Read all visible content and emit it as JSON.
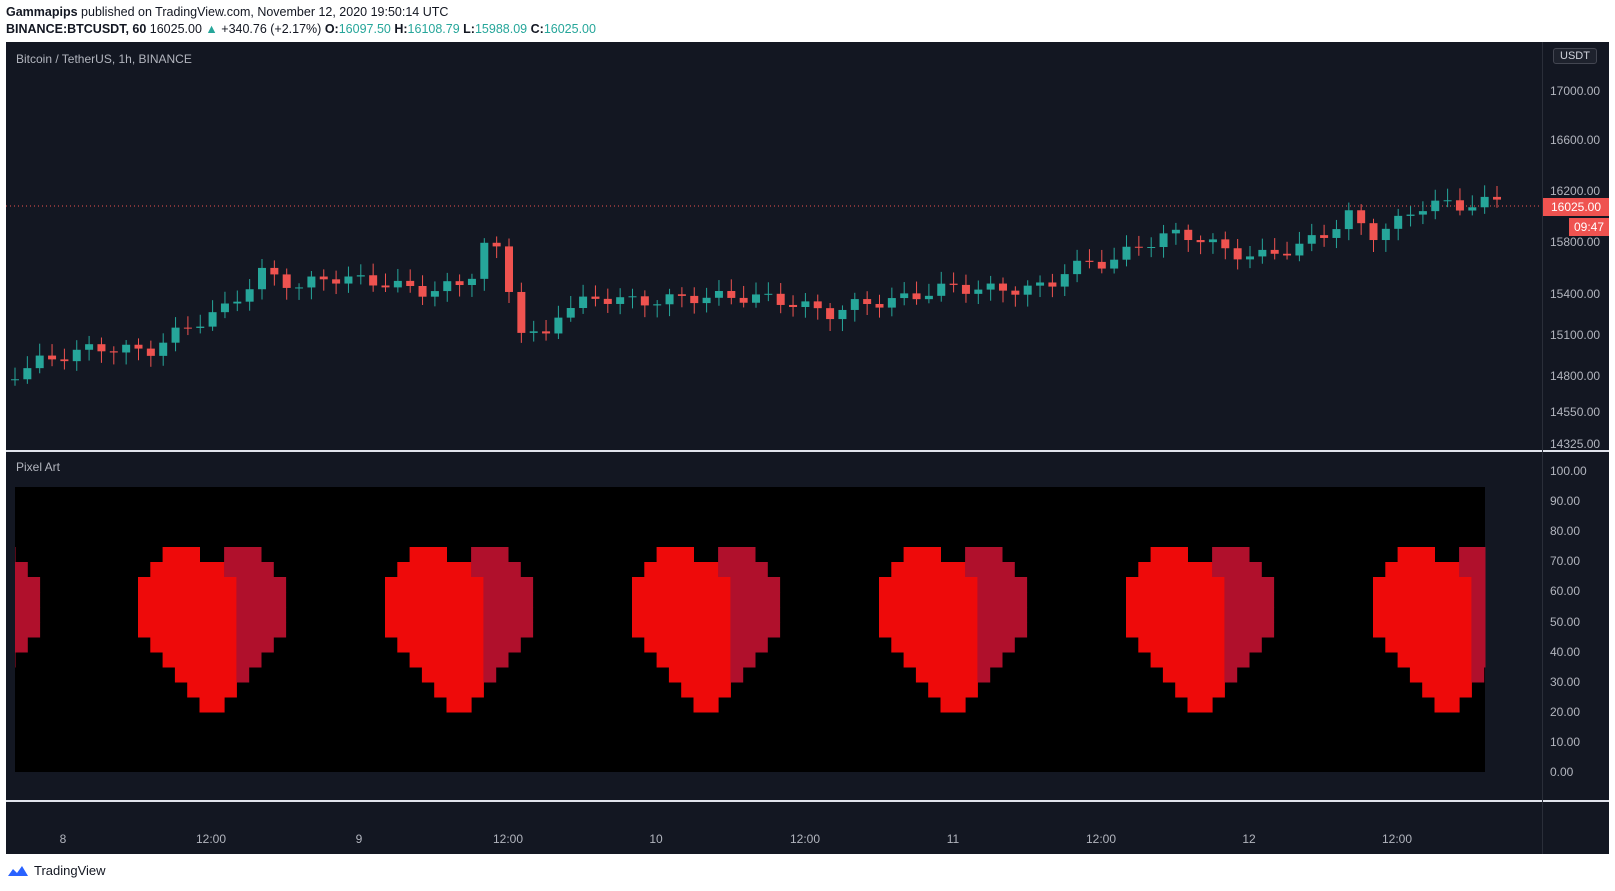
{
  "header": {
    "author": "Gammapips",
    "published": "published on TradingView.com, November 12, 2020 19:50:14 UTC",
    "symbol": "BINANCE:BTCUSDT, 60",
    "last": "16025.00",
    "change": "+340.76 (+2.17%)",
    "o_label": "O:",
    "o": "16097.50",
    "h_label": "H:",
    "h": "16108.79",
    "l_label": "L:",
    "l": "15988.09",
    "c_label": "C:",
    "c": "16025.00"
  },
  "main_pane": {
    "title": "Bitcoin / TetherUS, 1h, BINANCE",
    "currency": "USDT",
    "price_ticks": [
      "17000.00",
      "16600.00",
      "16200.00",
      "15800.00",
      "15400.00",
      "15100.00",
      "14800.00",
      "14550.00",
      "14325.00"
    ],
    "last_price_tag": "16025.00",
    "countdown_tag": "09:47"
  },
  "indicator_pane": {
    "title": "Pixel Art",
    "ticks": [
      "100.00",
      "90.00",
      "80.00",
      "70.00",
      "60.00",
      "50.00",
      "40.00",
      "30.00",
      "20.00",
      "10.00",
      "0.00"
    ]
  },
  "time_axis": [
    "8",
    "12:00",
    "9",
    "12:00",
    "10",
    "12:00",
    "11",
    "12:00",
    "12",
    "12:00"
  ],
  "colors": {
    "up": "#26a69a",
    "down": "#ef5350",
    "background": "#131722",
    "heart_main": "#ee0a0a",
    "heart_shade": "#b0102c"
  },
  "footer": {
    "brand": "TradingView",
    "logo_icon": "tradingview-logo-icon"
  }
}
